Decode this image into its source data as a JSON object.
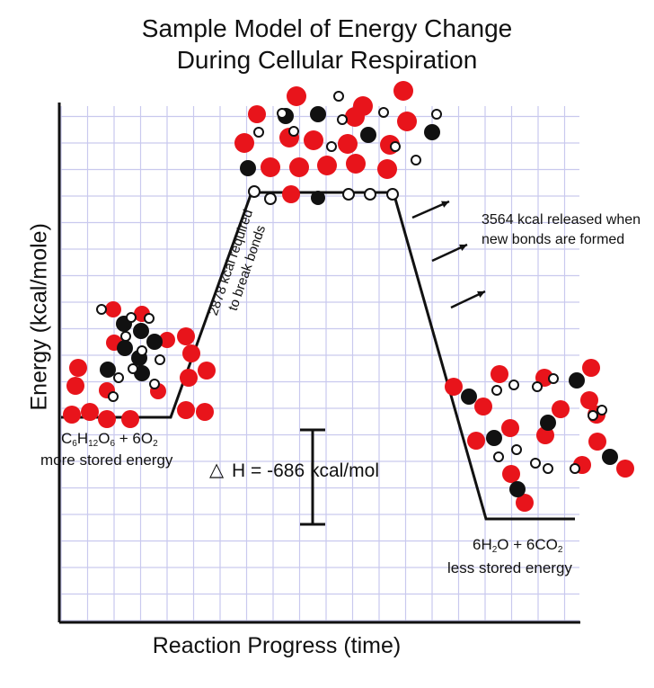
{
  "title": {
    "line1": "Sample Model of Energy Change",
    "line2": "During Cellular Respiration"
  },
  "axes": {
    "y_label": "Energy (kcal/mole)",
    "x_label": "Reaction Progress (time)"
  },
  "labels": {
    "break_bonds_line1": "2878 kcal required",
    "break_bonds_line2": "to break bonds",
    "release": "3564 kcal released when new bonds are formed",
    "delta_h_symbol": "△",
    "delta_h": "H = -686 kcal/mol",
    "reactant_note": "more stored energy",
    "product_note": "less stored energy"
  },
  "formulas": {
    "reactant": {
      "c": "C",
      "c_sub": "6",
      "h": "H",
      "h_sub": "12",
      "o": "O",
      "o_sub": "6",
      "plus": " + 6O",
      "o2_sub": "2"
    },
    "product": {
      "water": "6H",
      "water_sub": "2",
      "mid": "O + 6CO",
      "co2_sub": "2"
    }
  },
  "colors": {
    "oxygen": "#e8141b",
    "carbon": "#111111",
    "hydrogen": "#ffffff",
    "grid": "#c9c9ee",
    "line": "#111111"
  }
}
